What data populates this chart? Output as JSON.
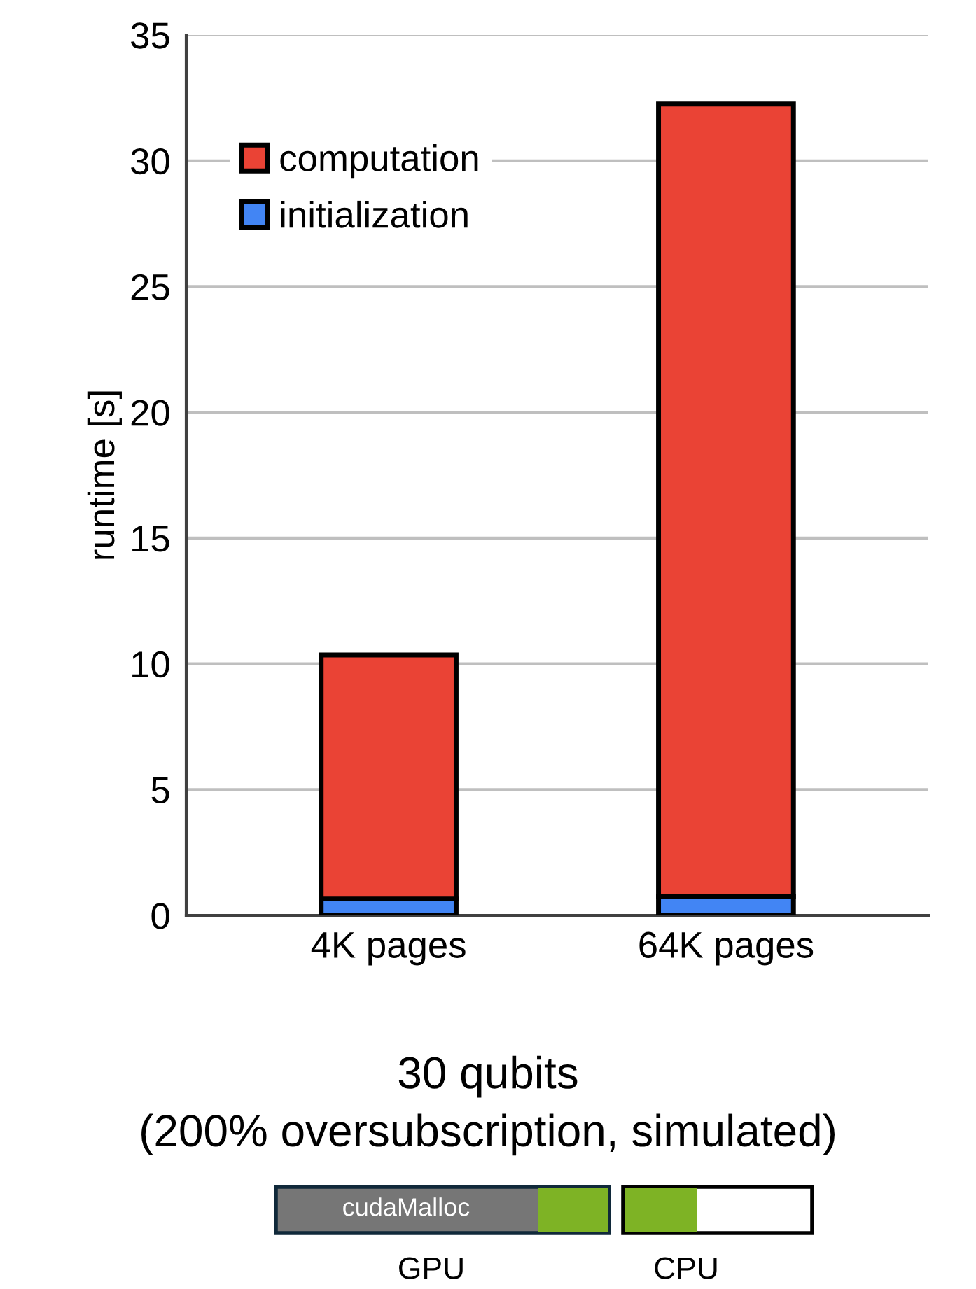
{
  "chart_data": {
    "type": "bar",
    "title": "30 qubits\n(200% oversubscription, simulated)",
    "ylabel": "runtime [s]",
    "categories": [
      "4K pages",
      "64K pages"
    ],
    "stacked": true,
    "series": [
      {
        "name": "initialization",
        "color": "#4285f4",
        "values": [
          0.65,
          0.75
        ]
      },
      {
        "name": "computation",
        "color": "#ea4335",
        "values": [
          9.7,
          31.5
        ]
      }
    ],
    "ylim": [
      0,
      35
    ],
    "yticks": [
      0,
      5,
      10,
      15,
      20,
      25,
      30,
      35
    ],
    "grid": "y",
    "legend": "top left",
    "annotations": [
      "cudaMalloc",
      "GPU",
      "CPU"
    ]
  }
}
